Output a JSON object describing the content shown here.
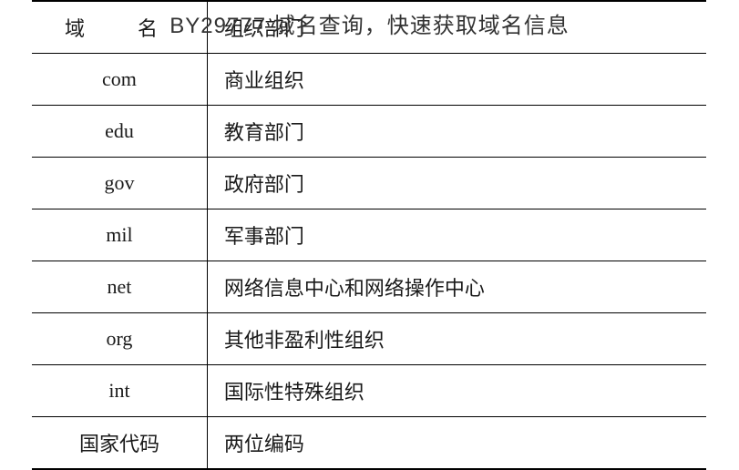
{
  "overlay_title": "BY29777 域名查询，快速获取域名信息",
  "table": {
    "type": "table",
    "border_color": "#000000",
    "outer_border_width": 2,
    "inner_border_width": 1,
    "background_color": "#ffffff",
    "text_color": "#1a1a1a",
    "font_size": 22,
    "columns": [
      {
        "key": "domain",
        "width_pct": 26,
        "align": "center"
      },
      {
        "key": "org",
        "width_pct": 74,
        "align": "left"
      }
    ],
    "header": {
      "left": "域　名",
      "right": "组织部门"
    },
    "rows": [
      {
        "domain": "com",
        "org": "商业组织"
      },
      {
        "domain": "edu",
        "org": "教育部门"
      },
      {
        "domain": "gov",
        "org": "政府部门"
      },
      {
        "domain": "mil",
        "org": "军事部门"
      },
      {
        "domain": "net",
        "org": "网络信息中心和网络操作中心"
      },
      {
        "domain": "org",
        "org": "其他非盈利性组织"
      },
      {
        "domain": "int",
        "org": "国际性特殊组织"
      },
      {
        "domain": "国家代码",
        "org": "两位编码"
      }
    ]
  }
}
